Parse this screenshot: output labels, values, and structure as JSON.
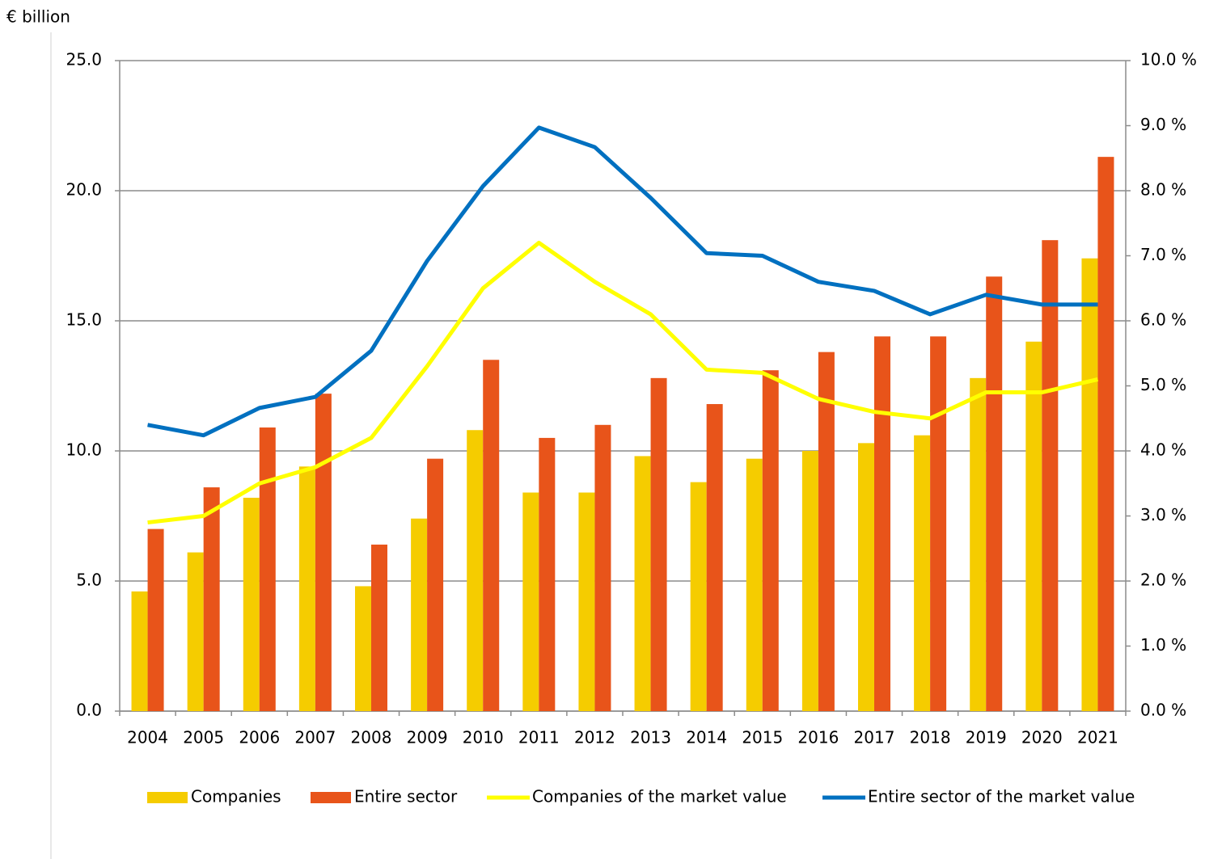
{
  "chart_data": {
    "type": "bar",
    "ylabel": "€ billion",
    "categories": [
      "2004",
      "2005",
      "2006",
      "2007",
      "2008",
      "2009",
      "2010",
      "2011",
      "2012",
      "2013",
      "2014",
      "2015",
      "2016",
      "2017",
      "2018",
      "2019",
      "2020",
      "2021"
    ],
    "series": [
      {
        "name": "Companies",
        "type": "bar",
        "color": "#f5cc00",
        "values": [
          4.6,
          6.1,
          8.2,
          9.4,
          4.8,
          7.4,
          10.8,
          8.4,
          8.4,
          9.8,
          8.8,
          9.7,
          10.0,
          10.3,
          10.6,
          12.8,
          14.2,
          17.4
        ]
      },
      {
        "name": "Entire sector",
        "type": "bar",
        "color": "#e8541a",
        "values": [
          7.0,
          8.6,
          10.9,
          12.2,
          6.4,
          9.7,
          13.5,
          10.5,
          11.0,
          12.8,
          11.8,
          13.1,
          13.8,
          14.4,
          14.4,
          16.7,
          18.1,
          21.3
        ]
      },
      {
        "name": "Companies of the market value",
        "type": "line",
        "axis": "y2",
        "color": "#ffff00",
        "values": [
          2.9,
          3.0,
          3.5,
          3.75,
          4.2,
          5.3,
          6.5,
          7.2,
          6.6,
          6.1,
          5.25,
          5.2,
          4.8,
          4.6,
          4.5,
          4.9,
          4.9,
          5.1
        ]
      },
      {
        "name": "Entire sector of the market value",
        "type": "line",
        "axis": "y2",
        "color": "#0070c0",
        "values": [
          4.4,
          4.24,
          4.66,
          4.83,
          5.54,
          6.92,
          8.07,
          8.97,
          8.67,
          7.89,
          7.04,
          7.0,
          6.6,
          6.46,
          6.1,
          6.4,
          6.25,
          6.25
        ]
      }
    ],
    "ylim": [
      0,
      25
    ],
    "yticks": [
      {
        "value": 0,
        "label": "0.0"
      },
      {
        "value": 5,
        "label": "5.0"
      },
      {
        "value": 10,
        "label": "10.0"
      },
      {
        "value": 15,
        "label": "15.0"
      },
      {
        "value": 20,
        "label": "20.0"
      },
      {
        "value": 25,
        "label": "25.0"
      }
    ],
    "y2lim": [
      0,
      10
    ],
    "y2ticks": [
      {
        "value": 0,
        "label": "0.0 %"
      },
      {
        "value": 1,
        "label": "1.0 %"
      },
      {
        "value": 2,
        "label": "2.0 %"
      },
      {
        "value": 3,
        "label": "3.0 %"
      },
      {
        "value": 4,
        "label": "4.0 %"
      },
      {
        "value": 5,
        "label": "5.0 %"
      },
      {
        "value": 6,
        "label": "6.0 %"
      },
      {
        "value": 7,
        "label": "7.0 %"
      },
      {
        "value": 8,
        "label": "8.0 %"
      },
      {
        "value": 9,
        "label": "9.0 %"
      },
      {
        "value": 10,
        "label": "10.0 %"
      }
    ],
    "grid": true,
    "legend": "bottom"
  }
}
